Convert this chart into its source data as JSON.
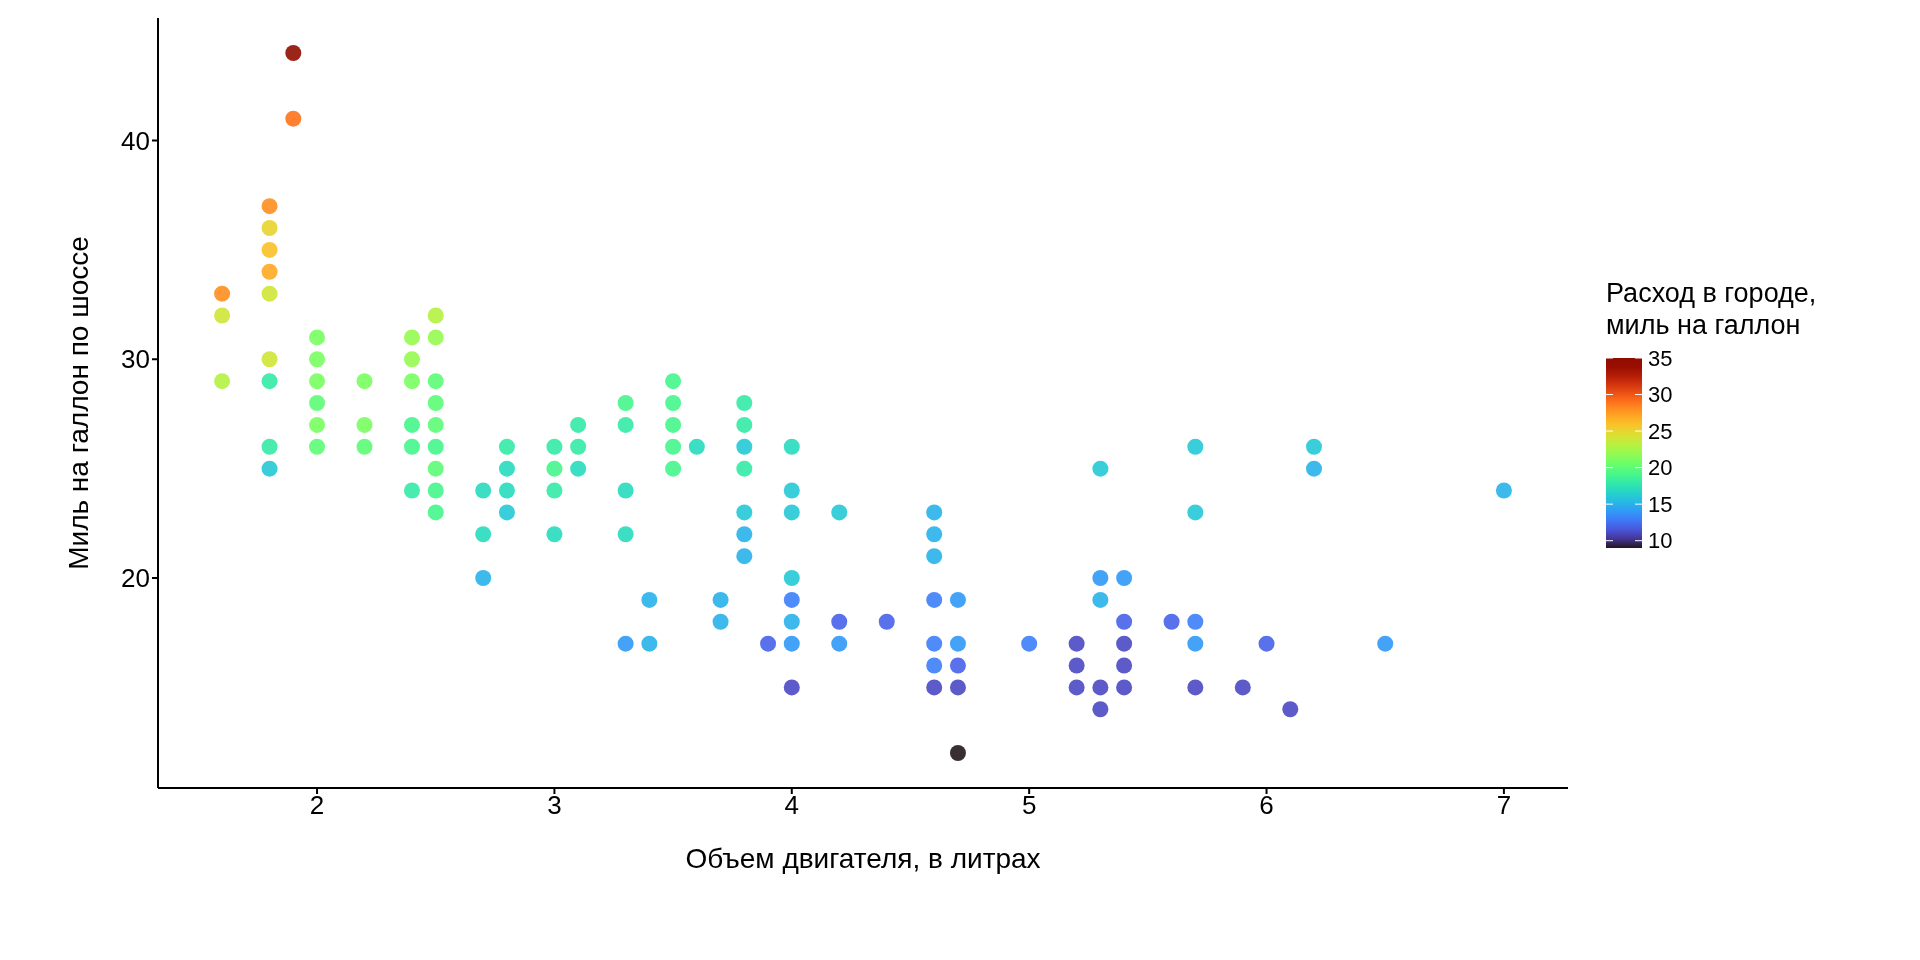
{
  "chart_data": {
    "type": "scatter",
    "xlabel": "Объем двигателя, в литрах",
    "ylabel": "Миль на галлон по шоссе",
    "clabel": "Расход в городе,\nмиль на галлон",
    "x": [
      1.6,
      1.6,
      1.6,
      1.8,
      1.8,
      1.8,
      1.8,
      1.8,
      1.8,
      1.8,
      1.8,
      1.8,
      1.9,
      1.9,
      2.0,
      2.0,
      2.0,
      2.0,
      2.0,
      2.0,
      2.2,
      2.2,
      2.2,
      2.4,
      2.4,
      2.4,
      2.4,
      2.4,
      2.4,
      2.5,
      2.5,
      2.5,
      2.5,
      2.5,
      2.5,
      2.5,
      2.5,
      2.5,
      2.7,
      2.7,
      2.7,
      2.8,
      2.8,
      2.8,
      2.8,
      3.0,
      3.0,
      3.0,
      3.0,
      3.1,
      3.1,
      3.1,
      3.3,
      3.3,
      3.3,
      3.3,
      3.3,
      3.4,
      3.4,
      3.5,
      3.5,
      3.5,
      3.5,
      3.5,
      3.6,
      3.7,
      3.7,
      3.8,
      3.8,
      3.8,
      3.8,
      3.8,
      3.8,
      3.8,
      3.9,
      4.0,
      4.0,
      4.0,
      4.0,
      4.0,
      4.0,
      4.0,
      4.0,
      4.2,
      4.2,
      4.2,
      4.4,
      4.6,
      4.6,
      4.6,
      4.6,
      4.6,
      4.6,
      4.6,
      4.7,
      4.7,
      4.7,
      4.7,
      4.7,
      5.0,
      5.2,
      5.2,
      5.2,
      5.3,
      5.3,
      5.3,
      5.3,
      5.3,
      5.4,
      5.4,
      5.4,
      5.4,
      5.4,
      5.6,
      5.7,
      5.7,
      5.7,
      5.7,
      5.7,
      5.9,
      6.0,
      6.1,
      6.2,
      6.2,
      6.5,
      7.0
    ],
    "values": [
      33,
      32,
      29,
      37,
      36,
      35,
      34,
      33,
      30,
      29,
      26,
      25,
      44,
      41,
      31,
      30,
      29,
      28,
      27,
      26,
      29,
      27,
      26,
      31,
      30,
      29,
      27,
      26,
      24,
      32,
      31,
      29,
      28,
      27,
      26,
      25,
      24,
      23,
      24,
      22,
      20,
      26,
      25,
      24,
      23,
      26,
      25,
      24,
      22,
      27,
      26,
      25,
      28,
      27,
      24,
      22,
      17,
      19,
      17,
      29,
      28,
      27,
      26,
      25,
      26,
      19,
      18,
      28,
      27,
      26,
      25,
      23,
      22,
      21,
      17,
      26,
      24,
      23,
      20,
      19,
      18,
      17,
      15,
      23,
      18,
      17,
      18,
      23,
      22,
      21,
      19,
      17,
      16,
      15,
      19,
      17,
      16,
      15,
      12,
      17,
      17,
      16,
      15,
      25,
      20,
      19,
      15,
      14,
      20,
      18,
      17,
      16,
      15,
      18,
      26,
      23,
      18,
      17,
      15,
      15,
      17,
      14,
      26,
      25,
      17,
      24
    ],
    "cvalues": [
      28,
      24,
      23,
      28,
      25,
      26,
      27,
      24,
      24,
      18,
      18,
      16,
      35,
      29,
      21,
      21,
      21,
      20,
      21,
      20,
      21,
      21,
      20,
      22,
      22,
      21,
      19,
      19,
      18,
      23,
      22,
      20,
      20,
      20,
      19,
      20,
      19,
      19,
      17,
      17,
      15,
      18,
      17,
      17,
      16,
      18,
      19,
      18,
      17,
      18,
      18,
      17,
      19,
      18,
      17,
      17,
      14,
      15,
      15,
      19,
      19,
      19,
      19,
      19,
      17,
      15,
      15,
      18,
      18,
      16,
      18,
      16,
      15,
      15,
      12,
      17,
      16,
      16,
      16,
      13,
      15,
      14,
      11,
      16,
      12,
      14,
      12,
      15,
      15,
      15,
      13,
      13,
      13,
      11,
      14,
      14,
      12,
      11,
      9,
      13,
      11,
      11,
      11,
      16,
      14,
      15,
      11,
      11,
      14,
      12,
      11,
      11,
      11,
      12,
      16,
      16,
      13,
      14,
      11,
      11,
      12,
      11,
      16,
      15,
      14,
      15
    ],
    "xlim": [
      1.33,
      7.27
    ],
    "xticks": [
      2,
      3,
      4,
      5,
      6,
      7
    ],
    "ylim": [
      10.4,
      45.6
    ],
    "yticks": [
      20,
      30,
      40
    ],
    "clim": [
      9,
      35
    ],
    "cticks": [
      10,
      15,
      20,
      25,
      30,
      35
    ],
    "grid": false,
    "marker": "circle"
  }
}
